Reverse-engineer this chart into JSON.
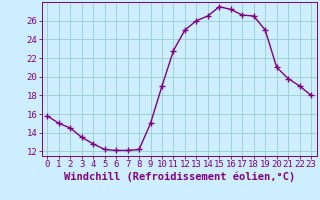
{
  "x": [
    0,
    1,
    2,
    3,
    4,
    5,
    6,
    7,
    8,
    9,
    10,
    11,
    12,
    13,
    14,
    15,
    16,
    17,
    18,
    19,
    20,
    21,
    22,
    23
  ],
  "y": [
    15.8,
    15.0,
    14.5,
    13.5,
    12.8,
    12.2,
    12.1,
    12.1,
    12.2,
    15.0,
    19.0,
    22.8,
    25.0,
    26.0,
    26.5,
    27.5,
    27.2,
    26.6,
    26.5,
    25.0,
    21.0,
    19.8,
    19.0,
    18.0
  ],
  "line_color": "#800080",
  "marker": "+",
  "marker_size": 4,
  "marker_linewidth": 1.0,
  "line_width": 1.0,
  "background_color": "#cceeff",
  "grid_color": "#99cccc",
  "xlabel": "Windchill (Refroidissement éolien,°C)",
  "ylabel": "",
  "ylim": [
    11.5,
    28.0
  ],
  "xlim": [
    -0.5,
    23.5
  ],
  "yticks": [
    12,
    14,
    16,
    18,
    20,
    22,
    24,
    26
  ],
  "xticks": [
    0,
    1,
    2,
    3,
    4,
    5,
    6,
    7,
    8,
    9,
    10,
    11,
    12,
    13,
    14,
    15,
    16,
    17,
    18,
    19,
    20,
    21,
    22,
    23
  ],
  "tick_fontsize": 6.5,
  "xlabel_fontsize": 7.5
}
